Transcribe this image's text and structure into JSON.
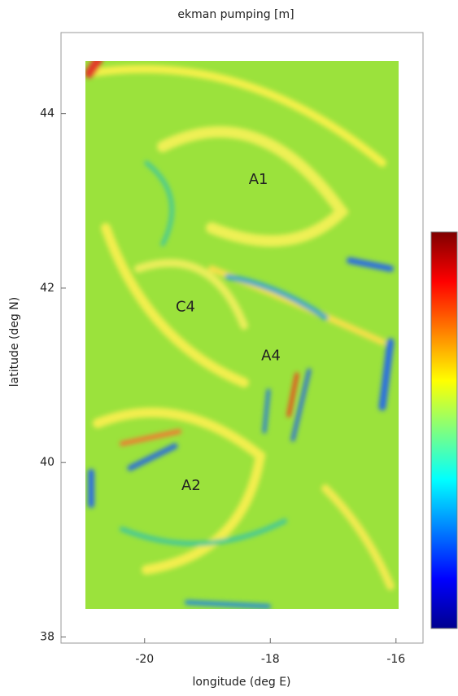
{
  "chart_data": {
    "type": "heatmap",
    "title": "ekman pumping [m]",
    "xlabel": "longitude (deg E)",
    "ylabel": "latitude (deg N)",
    "xlim": [
      -21.33,
      -15.57
    ],
    "xticks": [
      -20,
      -18,
      -16
    ],
    "ylim": [
      37.93,
      44.93
    ],
    "yticks": [
      38,
      40,
      42,
      44
    ],
    "colormap": "jet",
    "annotations": [
      {
        "text": "A1",
        "x": -18.19,
        "y": 43.24
      },
      {
        "text": "C4",
        "x": -19.35,
        "y": 41.78
      },
      {
        "text": "A4",
        "x": -17.99,
        "y": 41.22
      },
      {
        "text": "A2",
        "x": -19.26,
        "y": 39.73
      }
    ]
  }
}
